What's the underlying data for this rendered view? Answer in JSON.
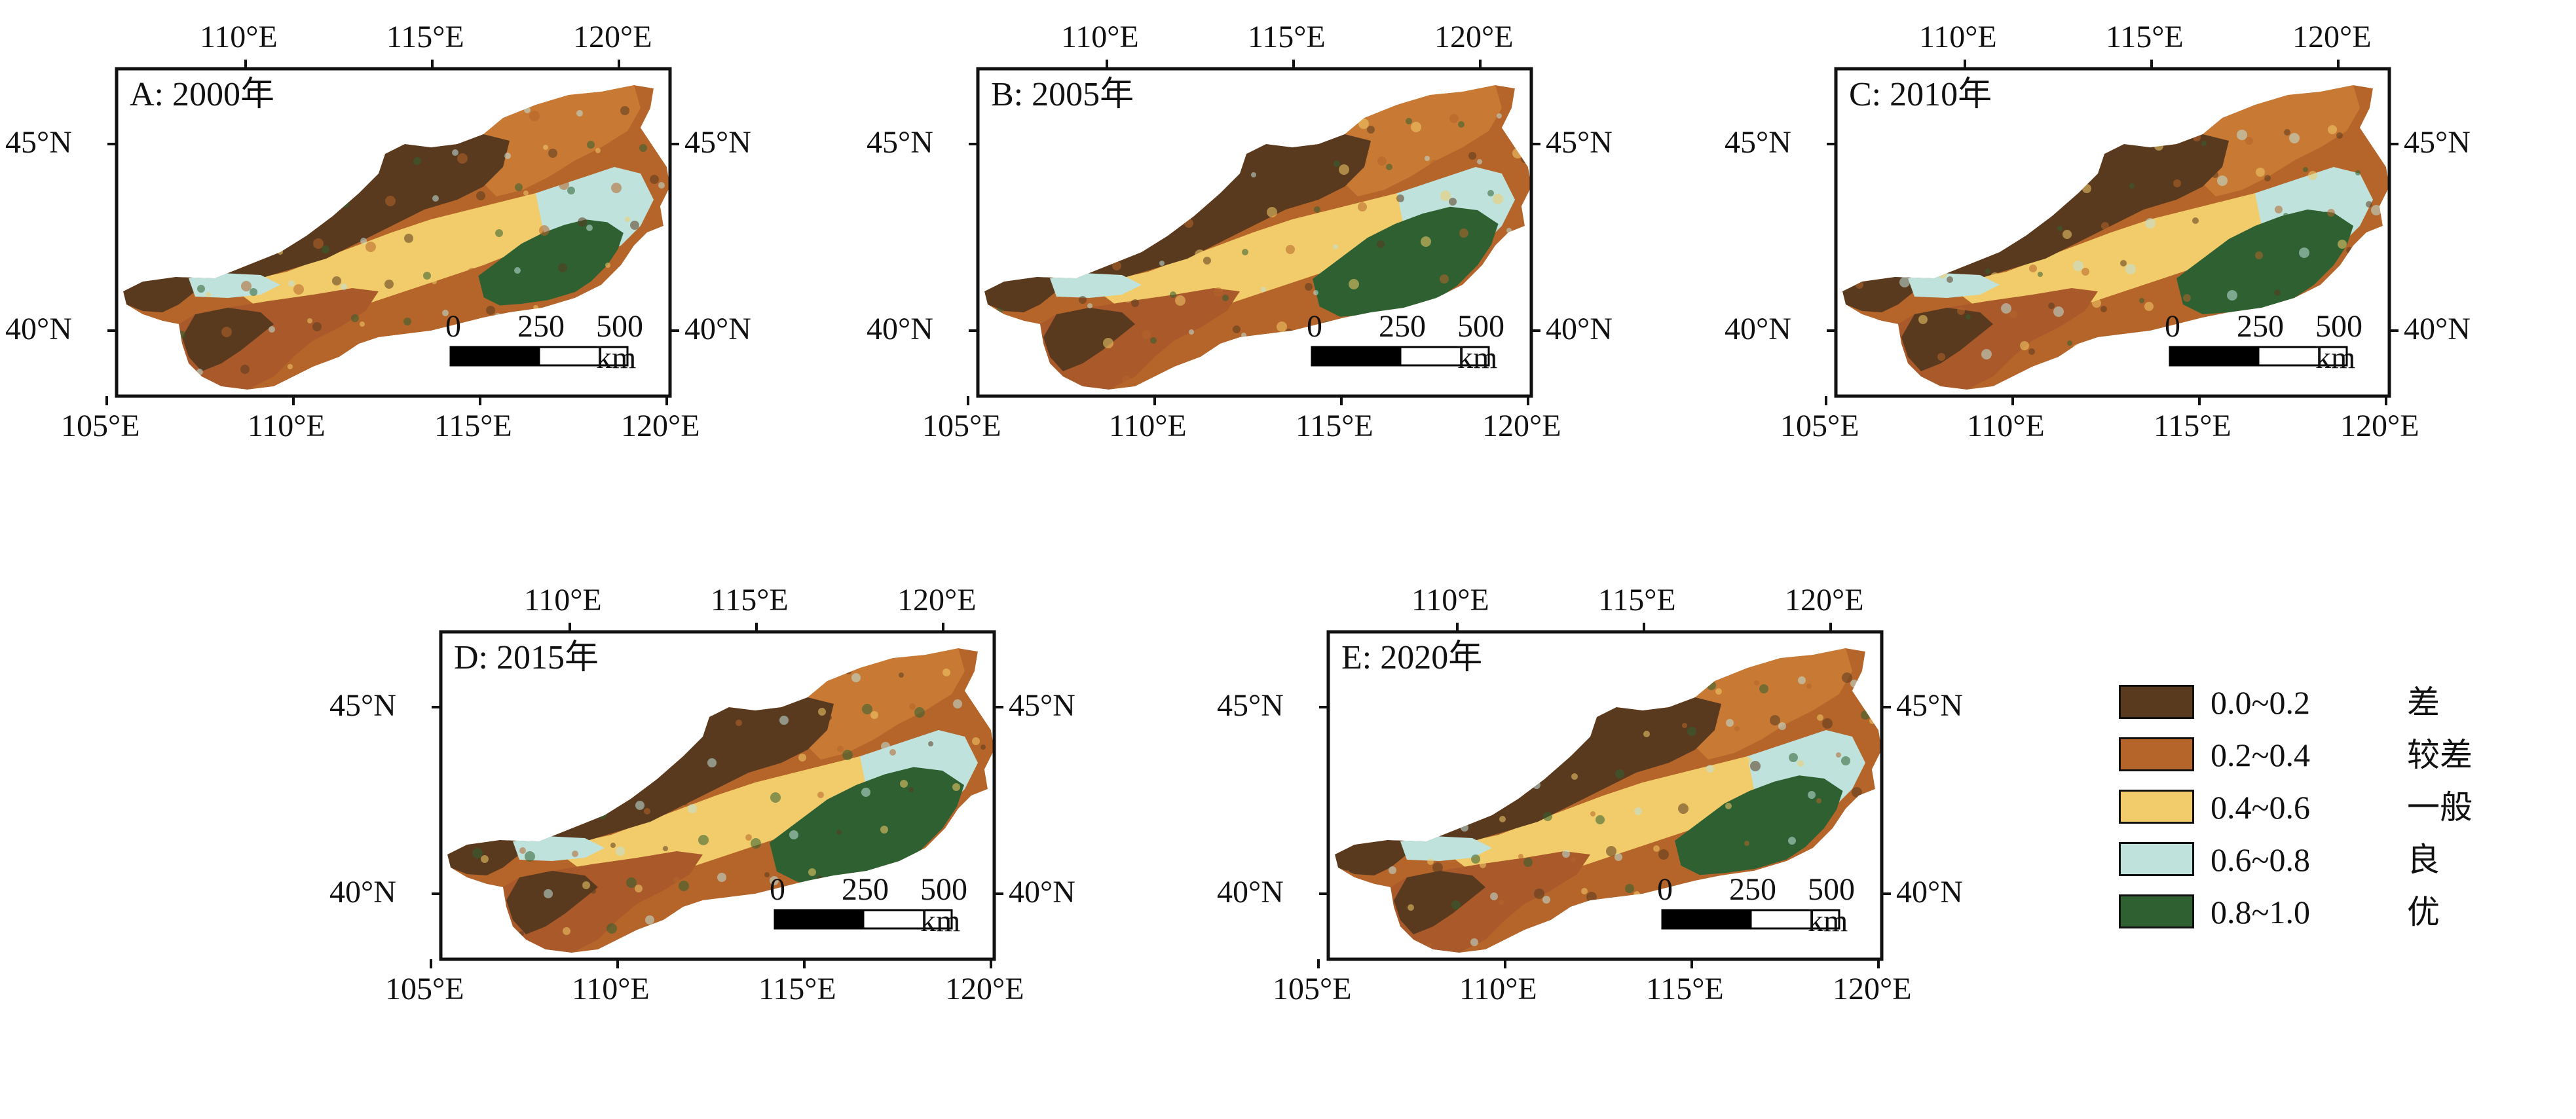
{
  "panels": [
    {
      "title": "A: 2000年",
      "green_extent": 0.82
    },
    {
      "title": "B: 2005年",
      "green_extent": 1.05
    },
    {
      "title": "C: 2010年",
      "green_extent": 1.0
    },
    {
      "title": "D: 2015年",
      "green_extent": 1.1
    },
    {
      "title": "E: 2020年",
      "green_extent": 0.95
    }
  ],
  "axes": {
    "x_top_ticks": [
      "110°E",
      "115°E",
      "120°E"
    ],
    "x_bottom_ticks": [
      "105°E",
      "110°E",
      "115°E",
      "120°E"
    ],
    "y_left_ticks": [
      "45°N",
      "40°N"
    ],
    "y_right_ticks": [
      "45°N",
      "40°N"
    ]
  },
  "scale_bar": {
    "labels": [
      "0",
      "250",
      "500 km"
    ]
  },
  "legend": {
    "items": [
      {
        "range": "0.0~0.2",
        "class": "差",
        "color": "#5a3a1f"
      },
      {
        "range": "0.2~0.4",
        "class": "较差",
        "color": "#b5652a"
      },
      {
        "range": "0.4~0.6",
        "class": "一般",
        "color": "#f2cc6a"
      },
      {
        "range": "0.6~0.8",
        "class": "良",
        "color": "#bfe2dc"
      },
      {
        "range": "0.8~1.0",
        "class": "优",
        "color": "#2f6032"
      }
    ]
  }
}
